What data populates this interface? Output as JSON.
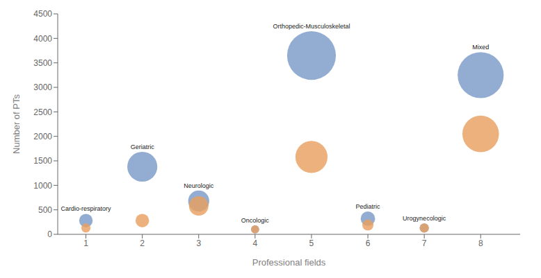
{
  "chart_data": {
    "type": "bubble",
    "xlabel": "Professional fields",
    "ylabel": "Number of PTs",
    "xlim": [
      0.5,
      8.7
    ],
    "xticks": [
      1,
      2,
      3,
      4,
      5,
      6,
      7,
      8
    ],
    "ylim": [
      0,
      4500
    ],
    "yticks": [
      0,
      500,
      1000,
      1500,
      2000,
      2500,
      3000,
      3500,
      4000,
      4500
    ],
    "grid": false,
    "x": [
      1,
      2,
      3,
      4,
      5,
      6,
      7,
      8
    ],
    "series": [
      {
        "color": "#7B9BC8",
        "values": [
          280,
          1380,
          680,
          100,
          3650,
          320,
          130,
          3250
        ],
        "sizes": [
          280,
          1380,
          680,
          100,
          3650,
          320,
          130,
          3250
        ]
      },
      {
        "color": "#E8A060",
        "values": [
          130,
          280,
          580,
          100,
          1580,
          190,
          130,
          2050
        ],
        "sizes": [
          130,
          280,
          580,
          100,
          1580,
          190,
          130,
          2050
        ]
      }
    ],
    "annotations": [
      {
        "text": "Cardio-respiratory",
        "x": 1,
        "y": 280
      },
      {
        "text": "Geriatric",
        "x": 2,
        "y": 1380
      },
      {
        "text": "Neurologic",
        "x": 3,
        "y": 680
      },
      {
        "text": "Oncologic",
        "x": 4,
        "y": 100
      },
      {
        "text": "Orthopedic-Musculoskeletal",
        "x": 5,
        "y": 3650
      },
      {
        "text": "Pediatric",
        "x": 6,
        "y": 320
      },
      {
        "text": "Urogynecologic",
        "x": 7,
        "y": 130
      },
      {
        "text": "Mixed",
        "x": 8,
        "y": 3250
      }
    ]
  }
}
